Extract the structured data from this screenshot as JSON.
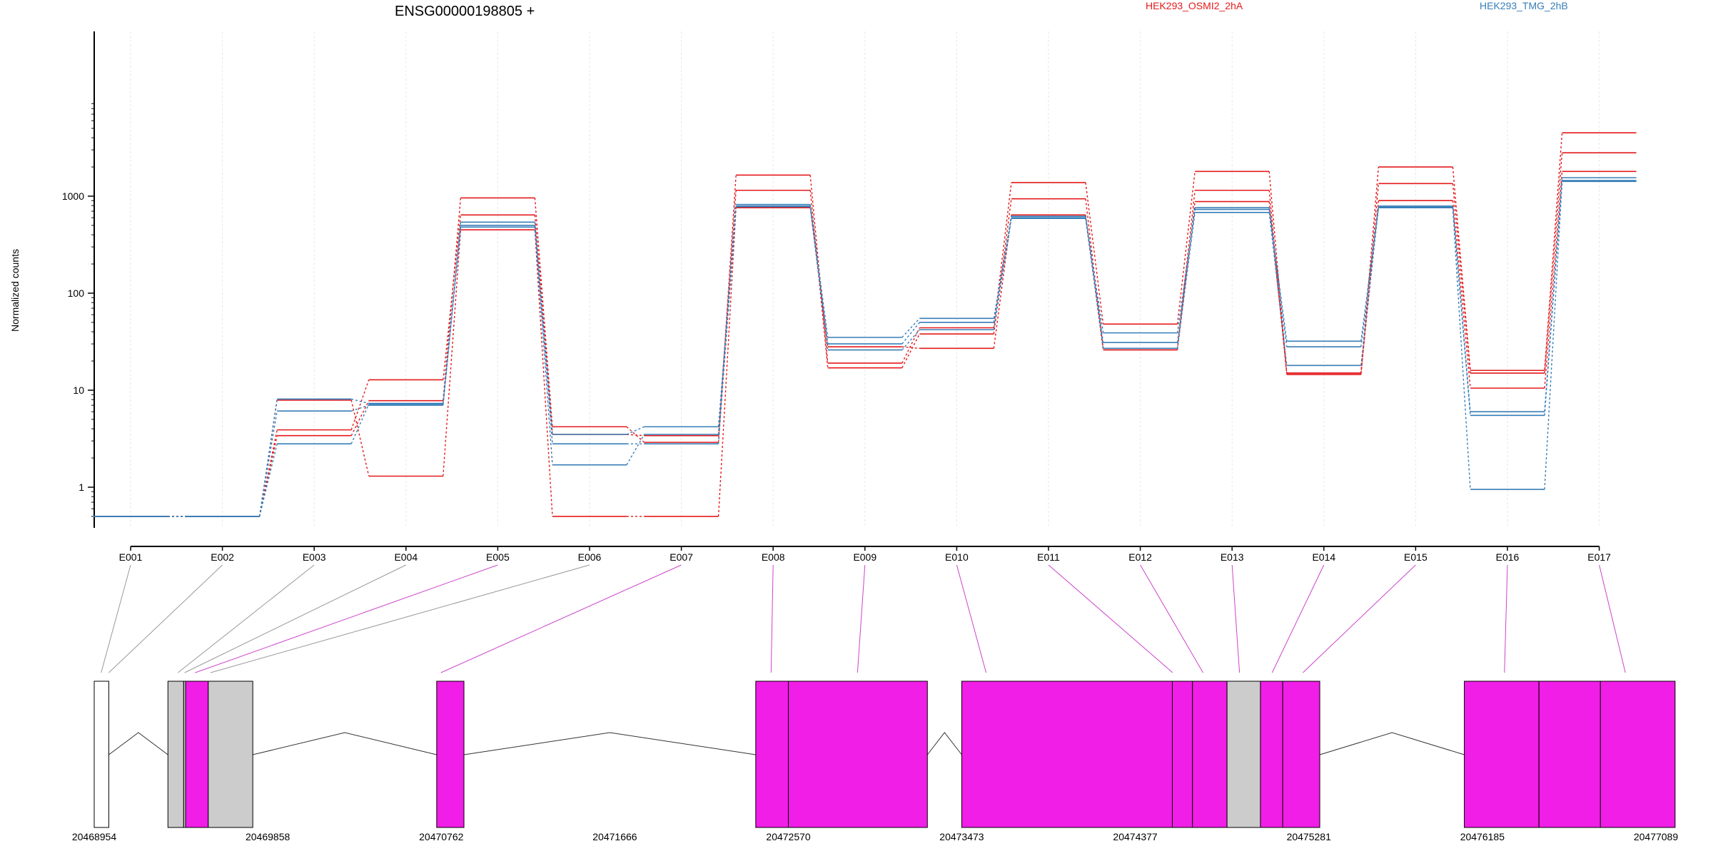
{
  "chart_data": {
    "type": "line",
    "title": "ENSG00000198805 +",
    "ylabel": "Normalized counts",
    "y_scale": "log",
    "ylim": [
      0.4,
      8000
    ],
    "y_ticks": [
      1,
      10,
      100,
      1000
    ],
    "y_tick_labels": [
      "1",
      "10",
      "100",
      "1000"
    ],
    "categories": [
      "E001",
      "E002",
      "E003",
      "E004",
      "E005",
      "E006",
      "E007",
      "E008",
      "E009",
      "E010",
      "E011",
      "E012",
      "E013",
      "E014",
      "E015",
      "E016",
      "E017"
    ],
    "grid": true,
    "legend": "top",
    "colors": {
      "HEK293_OSMI2_2hA": "#e41a1c",
      "HEK293_TMG_2hB": "#377eb8",
      "connector": "#cc44cc",
      "exon_fill": "#f01ee6",
      "other_exon_fill": "#cccccc"
    },
    "series": [
      {
        "name": "HEK293_OSMI2_2hA",
        "group": "HEK293_OSMI2_2hA",
        "values": [
          0.5,
          0.5,
          3.4,
          7.8,
          960,
          4.2,
          2.9,
          1650,
          19,
          44,
          1380,
          48,
          1800,
          15,
          2000,
          16,
          4500
        ]
      },
      {
        "name": "",
        "group": "HEK293_OSMI2_2hA",
        "values": [
          0.5,
          0.5,
          3.9,
          12.8,
          640,
          3.5,
          3.4,
          1150,
          17,
          38,
          940,
          27,
          1150,
          14.5,
          1350,
          15,
          2800
        ]
      },
      {
        "name": "",
        "group": "HEK293_OSMI2_2hA",
        "values": [
          0.5,
          0.5,
          7.9,
          1.3,
          450,
          0.5,
          0.5,
          760,
          28,
          27,
          640,
          26,
          880,
          15,
          900,
          10.5,
          1800
        ]
      },
      {
        "name": "",
        "group": "HEK293_TMG_2hB",
        "values": [
          0.5,
          0.5,
          8.1,
          7.3,
          540,
          3.5,
          4.2,
          820,
          35,
          55,
          620,
          39,
          760,
          32,
          790,
          6,
          1550
        ]
      },
      {
        "name": "HEK293_TMG_2hB",
        "group": "HEK293_TMG_2hB",
        "values": [
          0.5,
          0.5,
          6.1,
          7,
          500,
          1.7,
          3.5,
          790,
          30,
          50,
          600,
          31,
          730,
          28,
          770,
          5.5,
          1450
        ]
      },
      {
        "name": "",
        "group": "HEK293_TMG_2hB",
        "values": [
          0.5,
          0.5,
          2.8,
          7.2,
          480,
          2.8,
          2.8,
          780,
          26,
          42,
          590,
          27,
          680,
          18,
          760,
          0.95,
          1420
        ]
      }
    ],
    "exon_axis": {
      "tick_labels": [
        "20468954",
        "20469858",
        "20470762",
        "20471666",
        "20472570",
        "20473473",
        "20474377",
        "20475281",
        "20476185",
        "20477089"
      ],
      "range": [
        20468954,
        20477089
      ],
      "exons": [
        {
          "id": "E001",
          "start": 20468954,
          "end": 20469030,
          "fill": "white"
        },
        {
          "id": "E002",
          "start": 20469338,
          "end": 20469420,
          "fill": "grey"
        },
        {
          "id": "E003",
          "start": 20469420,
          "end": 20469430,
          "fill": "grey"
        },
        {
          "id": "E004",
          "start": 20469430,
          "end": 20469548,
          "fill": "magenta"
        },
        {
          "id": "E005",
          "start": 20469548,
          "end": 20469780,
          "fill": "grey"
        },
        {
          "id": "E006",
          "start": 20470738,
          "end": 20470880,
          "fill": "magenta"
        },
        {
          "id": "E007",
          "start": 20472400,
          "end": 20472570,
          "fill": "magenta"
        },
        {
          "id": "E008",
          "start": 20472570,
          "end": 20473294,
          "fill": "magenta"
        },
        {
          "id": "E009",
          "start": 20473473,
          "end": 20474570,
          "fill": "magenta"
        },
        {
          "id": "E010",
          "start": 20474570,
          "end": 20474675,
          "fill": "magenta"
        },
        {
          "id": "E011",
          "start": 20474675,
          "end": 20474855,
          "fill": "magenta"
        },
        {
          "id": "E012",
          "start": 20474855,
          "end": 20475029,
          "fill": "grey"
        },
        {
          "id": "E013",
          "start": 20475029,
          "end": 20475145,
          "fill": "magenta"
        },
        {
          "id": "E014",
          "start": 20475145,
          "end": 20475338,
          "fill": "magenta"
        },
        {
          "id": "E015",
          "start": 20476091,
          "end": 20476480,
          "fill": "magenta"
        },
        {
          "id": "E016",
          "start": 20476480,
          "end": 20476800,
          "fill": "magenta"
        },
        {
          "id": "E017",
          "start": 20476800,
          "end": 20477189,
          "fill": "magenta"
        }
      ],
      "mapping_targets": [
        20468990,
        20469030,
        20469390,
        20469425,
        20469480,
        20469560,
        20470760,
        20472480,
        20472930,
        20473600,
        20474572,
        20474730,
        20474920,
        20475090,
        20475250,
        20476300,
        20476930
      ]
    }
  }
}
